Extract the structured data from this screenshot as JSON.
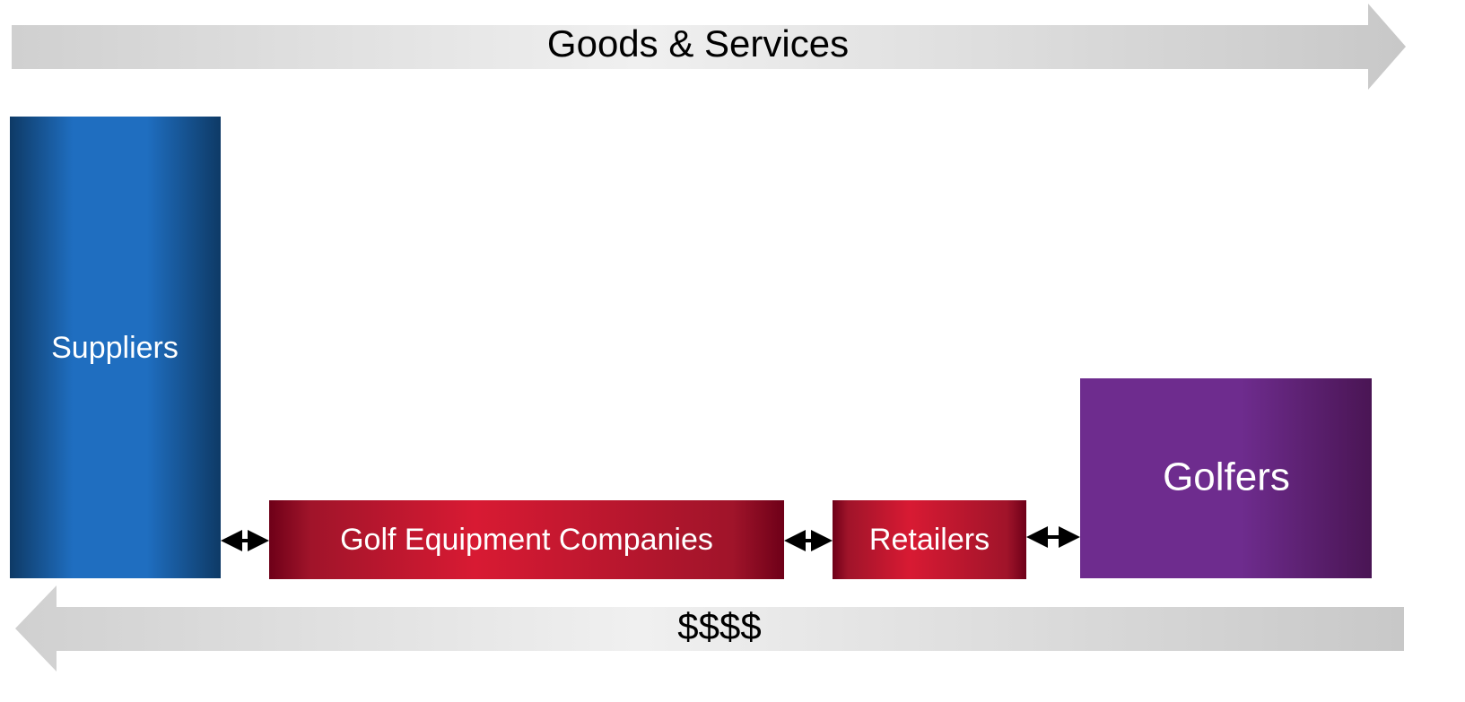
{
  "top_arrow": {
    "label": "Goods & Services"
  },
  "bottom_arrow": {
    "label": "$$$$"
  },
  "nodes": [
    {
      "label": "Suppliers"
    },
    {
      "label": "Golf Equipment Companies"
    },
    {
      "label": "Retailers"
    },
    {
      "label": "Golfers"
    }
  ]
}
